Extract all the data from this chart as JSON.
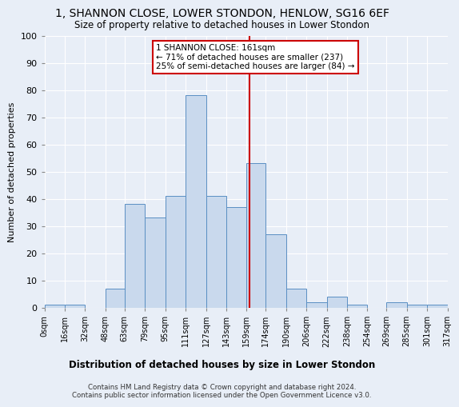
{
  "title": "1, SHANNON CLOSE, LOWER STONDON, HENLOW, SG16 6EF",
  "subtitle": "Size of property relative to detached houses in Lower Stondon",
  "xlabel": "Distribution of detached houses by size in Lower Stondon",
  "ylabel": "Number of detached properties",
  "bin_edges": [
    0,
    16,
    32,
    48,
    63,
    79,
    95,
    111,
    127,
    143,
    159,
    174,
    190,
    206,
    222,
    238,
    254,
    269,
    285,
    301,
    317
  ],
  "bin_labels": [
    "0sqm",
    "16sqm",
    "32sqm",
    "48sqm",
    "63sqm",
    "79sqm",
    "95sqm",
    "111sqm",
    "127sqm",
    "143sqm",
    "159sqm",
    "174sqm",
    "190sqm",
    "206sqm",
    "222sqm",
    "238sqm",
    "254sqm",
    "269sqm",
    "285sqm",
    "301sqm",
    "317sqm"
  ],
  "counts": [
    1,
    1,
    0,
    7,
    38,
    33,
    41,
    78,
    41,
    37,
    53,
    27,
    7,
    2,
    4,
    1,
    0,
    2,
    1,
    1
  ],
  "bar_color": "#c9d9ed",
  "bar_edge_color": "#5a8fc3",
  "property_size": 161,
  "vline_color": "#cc0000",
  "annotation_text": "1 SHANNON CLOSE: 161sqm\n← 71% of detached houses are smaller (237)\n25% of semi-detached houses are larger (84) →",
  "annotation_box_color": "#ffffff",
  "annotation_box_edge": "#cc0000",
  "ylim": [
    0,
    100
  ],
  "yticks": [
    0,
    10,
    20,
    30,
    40,
    50,
    60,
    70,
    80,
    90,
    100
  ],
  "background_color": "#e8eef7",
  "grid_color": "#ffffff",
  "footer": "Contains HM Land Registry data © Crown copyright and database right 2024.\nContains public sector information licensed under the Open Government Licence v3.0."
}
